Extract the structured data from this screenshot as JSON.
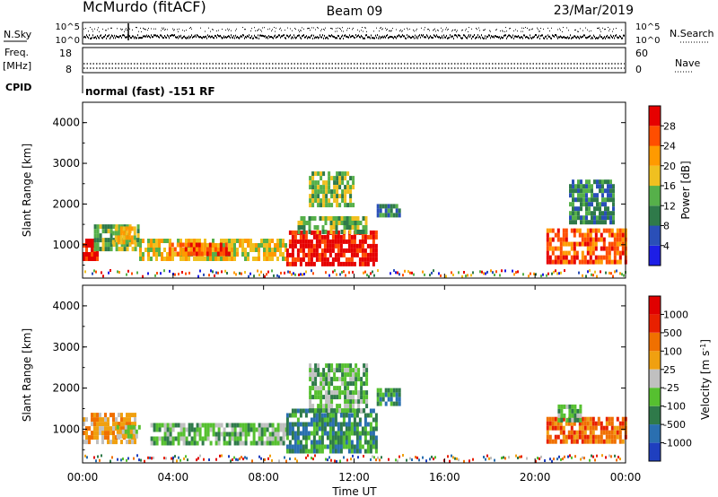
{
  "header": {
    "title": "McMurdo (fitACF)",
    "beam": "Beam 09",
    "date": "23/Mar/2019"
  },
  "small_panels": {
    "nsky_label": "N.Sky",
    "nsky_ticks": [
      "10^5",
      "10^0"
    ],
    "nsearch_label": "N.Search",
    "nsearch_ticks": [
      "10^5",
      "10^0"
    ],
    "freq_label_line1": "Freq.",
    "freq_label_line2": "[MHz]",
    "freq_ticks": [
      "18",
      "8"
    ],
    "nave_label": "Nave",
    "nave_ticks": [
      "60",
      "0"
    ],
    "cpid_label": "CPID",
    "cpid_text": "normal (fast) -151 RF"
  },
  "chart_data": [
    {
      "type": "heatmap",
      "name": "power",
      "ylabel": "Slant Range [km]",
      "yticks": [
        "1000",
        "2000",
        "3000",
        "4000"
      ],
      "ylim": [
        180,
        4500
      ],
      "xlim_hours": [
        0,
        24
      ],
      "colorbar": {
        "label": "Power [dB]",
        "ticks": [
          "4",
          "8",
          "12",
          "16",
          "20",
          "24",
          "28"
        ],
        "colors": [
          "#1d1ee6",
          "#2a4fb8",
          "#2f7a4a",
          "#56b04a",
          "#f0c020",
          "#ff9a00",
          "#ff4e00",
          "#e60000"
        ]
      },
      "echo_regions": [
        {
          "t0": 0.0,
          "t1": 0.7,
          "r0": 650,
          "r1": 1150,
          "level": 7
        },
        {
          "t0": 0.5,
          "t1": 2.5,
          "r0": 850,
          "r1": 1500,
          "level": 3
        },
        {
          "t0": 1.3,
          "t1": 2.3,
          "r0": 1100,
          "r1": 1450,
          "level": 4
        },
        {
          "t0": 2.5,
          "t1": 9.0,
          "r0": 650,
          "r1": 1150,
          "level": 4
        },
        {
          "t0": 3.8,
          "t1": 6.5,
          "r0": 800,
          "r1": 1050,
          "level": 6
        },
        {
          "t0": 9.0,
          "t1": 13.0,
          "r0": 500,
          "r1": 1350,
          "level": 7
        },
        {
          "t0": 9.5,
          "t1": 12.5,
          "r0": 1300,
          "r1": 1700,
          "level": 3
        },
        {
          "t0": 10.0,
          "t1": 12.0,
          "r0": 2000,
          "r1": 2800,
          "level": 3
        },
        {
          "t0": 13.0,
          "t1": 14.0,
          "r0": 1700,
          "r1": 2000,
          "level": 2
        },
        {
          "t0": 20.5,
          "t1": 24.0,
          "r0": 600,
          "r1": 1400,
          "level": 6
        },
        {
          "t0": 21.5,
          "t1": 23.5,
          "r0": 1500,
          "r1": 2600,
          "level": 2
        }
      ]
    },
    {
      "type": "heatmap",
      "name": "velocity",
      "ylabel": "Slant Range [km]",
      "yticks": [
        "1000",
        "2000",
        "3000",
        "4000"
      ],
      "ylim": [
        180,
        4500
      ],
      "xlim_hours": [
        0,
        24
      ],
      "xticks": [
        "00:00",
        "04:00",
        "08:00",
        "12:00",
        "16:00",
        "20:00",
        "00:00"
      ],
      "xlabel": "Time UT",
      "colorbar": {
        "label": "Velocity [m s^-1]",
        "ticks": [
          "1000",
          "500",
          "100",
          "25",
          "-25",
          "-100",
          "-500",
          "-1000"
        ],
        "colors": [
          "#1f3fbf",
          "#2a6fb0",
          "#2f7a4a",
          "#56c030",
          "#c0c0c0",
          "#f0a010",
          "#f07000",
          "#e82000",
          "#e00000"
        ]
      },
      "echo_regions": [
        {
          "t0": 0.0,
          "t1": 2.3,
          "r0": 700,
          "r1": 1400,
          "level": 5
        },
        {
          "t0": 1.5,
          "t1": 2.5,
          "r0": 800,
          "r1": 1100,
          "level": 4
        },
        {
          "t0": 3.0,
          "t1": 9.0,
          "r0": 650,
          "r1": 1150,
          "level": 3
        },
        {
          "t0": 9.0,
          "t1": 13.0,
          "r0": 500,
          "r1": 1500,
          "level": 2
        },
        {
          "t0": 10.0,
          "t1": 12.5,
          "r0": 1500,
          "r1": 2600,
          "level": 3
        },
        {
          "t0": 13.0,
          "t1": 14.0,
          "r0": 1600,
          "r1": 2000,
          "level": 2
        },
        {
          "t0": 20.5,
          "t1": 24.0,
          "r0": 700,
          "r1": 1300,
          "level": 6
        },
        {
          "t0": 21.0,
          "t1": 22.0,
          "r0": 1200,
          "r1": 1600,
          "level": 3
        }
      ]
    }
  ]
}
